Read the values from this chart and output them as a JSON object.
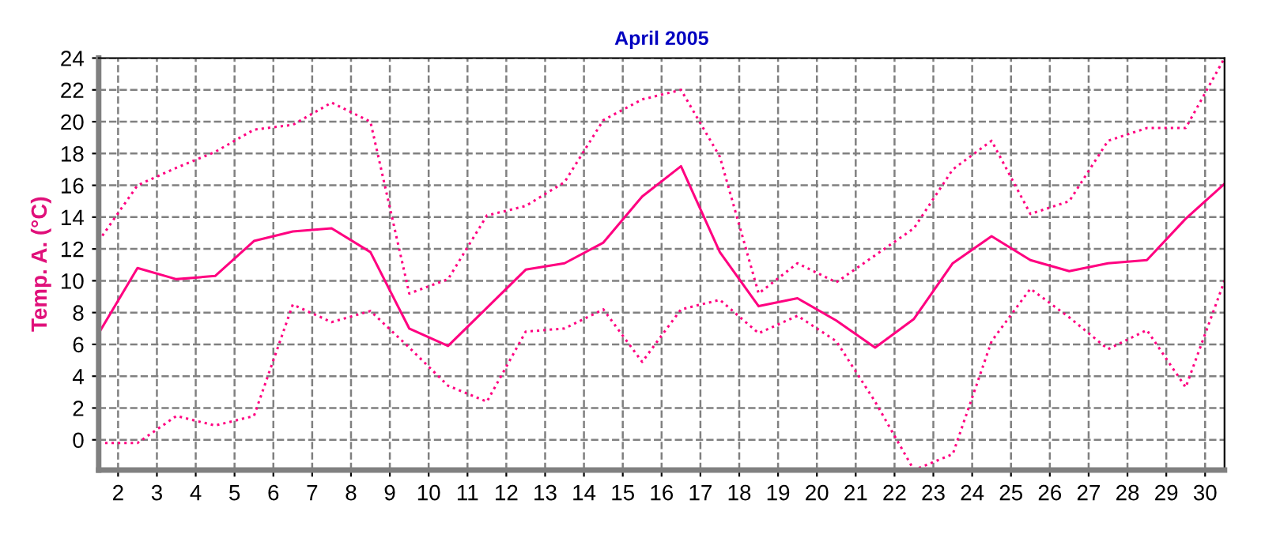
{
  "chart_data": {
    "type": "line",
    "title": "April 2005",
    "ylabel": "Temp. A. (°C)",
    "x": [
      1.5,
      2.5,
      3.5,
      4.5,
      5.5,
      6.5,
      7.5,
      8.5,
      9.5,
      10.5,
      11.5,
      12.5,
      13.5,
      14.5,
      15.5,
      16.5,
      17.5,
      18.5,
      19.5,
      20.5,
      21.5,
      22.5,
      23.5,
      24.5,
      25.5,
      26.5,
      27.5,
      28.5,
      29.5,
      30.5
    ],
    "series": [
      {
        "color": "#ff0080",
        "line_style": "dotted",
        "values": [
          12.5,
          16.0,
          17.1,
          18.1,
          19.5,
          19.8,
          21.2,
          20.0,
          9.2,
          10.1,
          14.1,
          14.7,
          16.2,
          20.1,
          21.4,
          22.0,
          17.8,
          9.2,
          11.1,
          9.9,
          11.6,
          13.3,
          17.0,
          18.8,
          14.2,
          15.0,
          18.8,
          19.6,
          19.6,
          24.0
        ]
      },
      {
        "color": "#ff0080",
        "line_style": "solid",
        "values": [
          6.7,
          10.8,
          10.1,
          10.3,
          12.5,
          13.1,
          13.3,
          11.8,
          7.0,
          5.9,
          8.3,
          10.7,
          11.1,
          12.4,
          15.3,
          17.2,
          11.8,
          8.4,
          8.9,
          7.5,
          5.8,
          7.6,
          11.1,
          12.8,
          11.3,
          10.6,
          11.1,
          11.3,
          13.9,
          16.1
        ]
      },
      {
        "color": "#ff0080",
        "line_style": "dotted",
        "values": [
          -0.2,
          -0.2,
          1.5,
          0.9,
          1.5,
          8.5,
          7.4,
          8.1,
          5.8,
          3.4,
          2.4,
          6.8,
          7.0,
          8.2,
          4.9,
          8.2,
          8.8,
          6.7,
          7.8,
          6.2,
          2.4,
          -1.9,
          -0.9,
          6.2,
          9.5,
          7.7,
          5.7,
          6.9,
          3.3,
          10.0
        ]
      }
    ],
    "xlim": [
      1.5,
      30.5
    ],
    "ylim": [
      -1.9,
      24
    ],
    "xticks": [
      2,
      3,
      4,
      5,
      6,
      7,
      8,
      9,
      10,
      11,
      12,
      13,
      14,
      15,
      16,
      17,
      18,
      19,
      20,
      21,
      22,
      23,
      24,
      25,
      26,
      27,
      28,
      29,
      30
    ],
    "yticks": [
      0,
      2,
      4,
      6,
      8,
      10,
      12,
      14,
      16,
      18,
      20,
      22,
      24
    ],
    "grid": true,
    "marker": "none"
  }
}
